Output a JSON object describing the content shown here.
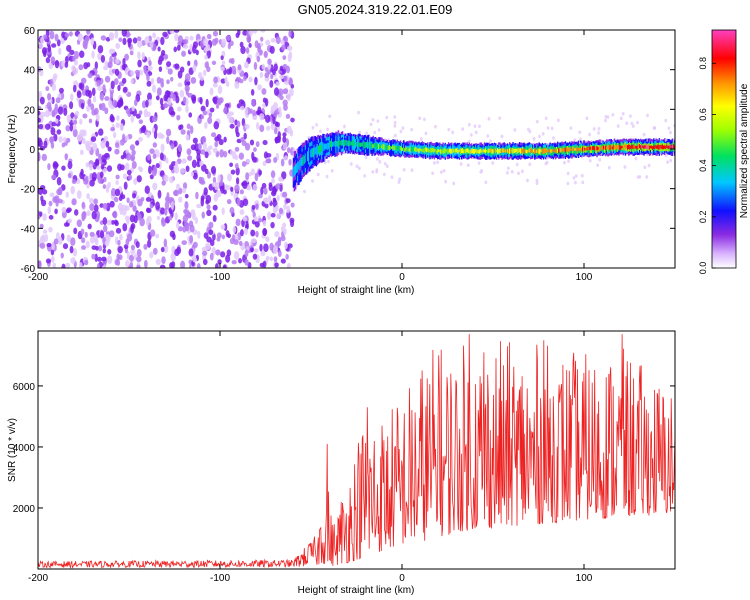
{
  "title": "GN05.2024.319.22.01.E09",
  "colors": {
    "signal_line": "#ee2222",
    "scatter_noise": "#7a1ee6",
    "frame": "#000000"
  },
  "chart_data": [
    {
      "type": "heatmap",
      "panel": "spectrogram",
      "xlabel": "Height of straight line (km)",
      "ylabel": "Frequency (Hz)",
      "xlim": [
        -200,
        150
      ],
      "ylim": [
        -60,
        60
      ],
      "x_ticks": [
        -200,
        -100,
        0,
        100
      ],
      "y_ticks": [
        -60,
        -40,
        -20,
        0,
        20,
        40,
        60
      ],
      "noise_region_x": [
        -200,
        -60
      ],
      "signal_track": {
        "x": [
          -60,
          -55,
          -50,
          -45,
          -40,
          -35,
          -30,
          -20,
          -10,
          0,
          20,
          40,
          60,
          80,
          100,
          120,
          140,
          150
        ],
        "freq": [
          -12,
          -6,
          -2,
          0,
          2,
          3,
          3,
          2,
          1,
          0,
          -1,
          -1,
          -1,
          -1,
          0,
          1,
          1,
          1
        ],
        "half_width_hz": [
          10,
          9,
          8,
          7,
          6,
          6,
          5,
          5,
          4,
          4,
          4,
          4,
          4,
          4,
          4,
          4,
          4,
          4
        ],
        "amplitude": [
          0.25,
          0.3,
          0.3,
          0.35,
          0.35,
          0.4,
          0.4,
          0.4,
          0.45,
          0.5,
          0.55,
          0.6,
          0.65,
          0.7,
          0.75,
          0.8,
          0.85,
          0.85
        ]
      },
      "colorbar": {
        "label": "Normalized spectral amplitude",
        "range": [
          0.0,
          0.93
        ],
        "ticks": [
          "0.0",
          "0.2",
          "0.4",
          "0.6",
          "0.8"
        ]
      }
    },
    {
      "type": "line",
      "panel": "snr",
      "xlabel": "Height of straight line (km)",
      "ylabel": "SNR (10 * v/v)",
      "xlim": [
        -200,
        150
      ],
      "ylim": [
        0,
        7800
      ],
      "x_ticks": [
        -200,
        -100,
        0,
        100
      ],
      "y_ticks": [
        2000,
        4000,
        6000
      ],
      "series": [
        {
          "name": "SNR",
          "envelope": {
            "x": [
              -200,
              -60,
              -46,
              -45,
              -42,
              -38,
              -30,
              -20,
              -10,
              0,
              10,
              20,
              30,
              40,
              60,
              80,
              100,
              120,
              150
            ],
            "low": [
              50,
              50,
              60,
              200,
              150,
              100,
              200,
              400,
              600,
              800,
              900,
              1000,
              1200,
              1300,
              1400,
              1500,
              1600,
              1700,
              1800
            ],
            "high": [
              250,
              300,
              1200,
              2500,
              3500,
              1500,
              3300,
              5300,
              5200,
              5800,
              6900,
              7500,
              7300,
              7700,
              7500,
              7400,
              7100,
              7300,
              5900
            ]
          },
          "peaks": [
            {
              "x": -41,
              "y": 4100
            },
            {
              "x": -19,
              "y": 5300
            },
            {
              "x": 20,
              "y": 7000
            },
            {
              "x": 37,
              "y": 7700
            },
            {
              "x": 45,
              "y": 7100
            },
            {
              "x": 78,
              "y": 7500
            },
            {
              "x": 121,
              "y": 7700
            }
          ]
        }
      ]
    }
  ]
}
